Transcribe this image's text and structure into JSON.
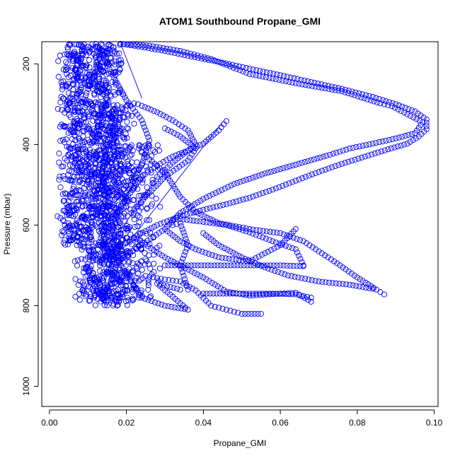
{
  "chart_data": {
    "type": "scatter",
    "title": "ATOM1 Southbound Propane_GMI",
    "xlabel": "Propane_GMI",
    "ylabel": "Pressure (mbar)",
    "xlim": [
      -0.002,
      0.101
    ],
    "ylim": [
      1050,
      145
    ],
    "y_axis_inverted": true,
    "x_ticks": [
      "0.00",
      "0.02",
      "0.04",
      "0.06",
      "0.08",
      "0.10"
    ],
    "y_ticks": [
      "200",
      "400",
      "600",
      "800",
      "1000"
    ],
    "x_tick_values": [
      0.0,
      0.02,
      0.04,
      0.06,
      0.08,
      0.1
    ],
    "y_tick_values": [
      200,
      400,
      600,
      800,
      1000
    ],
    "grid": false,
    "marker": "open-circle",
    "color": "#0000ff",
    "series": [
      {
        "values": [
          {
            "x": 0.0185,
            "y": 150
          },
          {
            "x": 0.024,
            "y": 158
          },
          {
            "x": 0.03,
            "y": 168
          },
          {
            "x": 0.036,
            "y": 180
          },
          {
            "x": 0.044,
            "y": 195
          },
          {
            "x": 0.052,
            "y": 212
          },
          {
            "x": 0.06,
            "y": 228
          },
          {
            "x": 0.068,
            "y": 245
          },
          {
            "x": 0.076,
            "y": 262
          },
          {
            "x": 0.084,
            "y": 282
          },
          {
            "x": 0.09,
            "y": 300
          },
          {
            "x": 0.095,
            "y": 318
          },
          {
            "x": 0.098,
            "y": 338
          },
          {
            "x": 0.098,
            "y": 362
          },
          {
            "x": 0.096,
            "y": 380
          },
          {
            "x": 0.093,
            "y": 398
          },
          {
            "x": 0.088,
            "y": 412
          },
          {
            "x": 0.082,
            "y": 430
          },
          {
            "x": 0.076,
            "y": 448
          },
          {
            "x": 0.07,
            "y": 468
          },
          {
            "x": 0.064,
            "y": 490
          },
          {
            "x": 0.058,
            "y": 512
          },
          {
            "x": 0.052,
            "y": 532
          },
          {
            "x": 0.046,
            "y": 548
          },
          {
            "x": 0.04,
            "y": 562
          },
          {
            "x": 0.034,
            "y": 578
          },
          {
            "x": 0.028,
            "y": 600
          },
          {
            "x": 0.022,
            "y": 630
          },
          {
            "x": 0.017,
            "y": 665
          }
        ]
      },
      {
        "values": [
          {
            "x": 0.0185,
            "y": 150
          },
          {
            "x": 0.026,
            "y": 155
          },
          {
            "x": 0.034,
            "y": 168
          },
          {
            "x": 0.042,
            "y": 188
          },
          {
            "x": 0.052,
            "y": 225
          },
          {
            "x": 0.064,
            "y": 248
          },
          {
            "x": 0.076,
            "y": 268
          },
          {
            "x": 0.086,
            "y": 298
          },
          {
            "x": 0.089,
            "y": 305
          },
          {
            "x": 0.097,
            "y": 345
          },
          {
            "x": 0.095,
            "y": 372
          },
          {
            "x": 0.09,
            "y": 385
          },
          {
            "x": 0.084,
            "y": 398
          },
          {
            "x": 0.078,
            "y": 410
          },
          {
            "x": 0.072,
            "y": 428
          },
          {
            "x": 0.064,
            "y": 450
          },
          {
            "x": 0.056,
            "y": 472
          },
          {
            "x": 0.048,
            "y": 498
          },
          {
            "x": 0.04,
            "y": 535
          },
          {
            "x": 0.034,
            "y": 570
          },
          {
            "x": 0.03,
            "y": 610
          },
          {
            "x": 0.024,
            "y": 648
          },
          {
            "x": 0.018,
            "y": 690
          }
        ]
      },
      {
        "values": [
          {
            "x": 0.046,
            "y": 342
          },
          {
            "x": 0.044,
            "y": 365
          },
          {
            "x": 0.04,
            "y": 398
          },
          {
            "x": 0.036,
            "y": 415
          },
          {
            "x": 0.032,
            "y": 430
          },
          {
            "x": 0.028,
            "y": 452
          },
          {
            "x": 0.024,
            "y": 480
          },
          {
            "x": 0.021,
            "y": 520
          },
          {
            "x": 0.018,
            "y": 560
          },
          {
            "x": 0.016,
            "y": 600
          },
          {
            "x": 0.014,
            "y": 650
          }
        ]
      },
      {
        "values": [
          {
            "x": 0.024,
            "y": 420
          },
          {
            "x": 0.03,
            "y": 470
          },
          {
            "x": 0.034,
            "y": 530
          },
          {
            "x": 0.038,
            "y": 568
          },
          {
            "x": 0.044,
            "y": 595
          },
          {
            "x": 0.052,
            "y": 610
          },
          {
            "x": 0.06,
            "y": 620
          },
          {
            "x": 0.066,
            "y": 640
          },
          {
            "x": 0.07,
            "y": 665
          },
          {
            "x": 0.074,
            "y": 690
          },
          {
            "x": 0.08,
            "y": 730
          },
          {
            "x": 0.085,
            "y": 760
          },
          {
            "x": 0.087,
            "y": 772
          }
        ]
      },
      {
        "values": [
          {
            "x": 0.022,
            "y": 630
          },
          {
            "x": 0.03,
            "y": 680
          },
          {
            "x": 0.04,
            "y": 730
          },
          {
            "x": 0.046,
            "y": 765
          },
          {
            "x": 0.052,
            "y": 775
          },
          {
            "x": 0.06,
            "y": 770
          },
          {
            "x": 0.064,
            "y": 768
          },
          {
            "x": 0.068,
            "y": 790
          }
        ]
      },
      {
        "values": [
          {
            "x": 0.03,
            "y": 700
          },
          {
            "x": 0.036,
            "y": 700
          },
          {
            "x": 0.042,
            "y": 700
          },
          {
            "x": 0.048,
            "y": 700
          },
          {
            "x": 0.054,
            "y": 700
          },
          {
            "x": 0.06,
            "y": 700
          },
          {
            "x": 0.066,
            "y": 702
          }
        ]
      },
      {
        "values": [
          {
            "x": 0.04,
            "y": 770
          },
          {
            "x": 0.046,
            "y": 770
          },
          {
            "x": 0.052,
            "y": 770
          },
          {
            "x": 0.058,
            "y": 770
          },
          {
            "x": 0.064,
            "y": 772
          },
          {
            "x": 0.068,
            "y": 780
          }
        ]
      },
      {
        "values": [
          {
            "x": 0.026,
            "y": 728
          },
          {
            "x": 0.03,
            "y": 735
          },
          {
            "x": 0.034,
            "y": 740
          },
          {
            "x": 0.038,
            "y": 762
          },
          {
            "x": 0.042,
            "y": 800
          },
          {
            "x": 0.046,
            "y": 810
          },
          {
            "x": 0.05,
            "y": 820
          },
          {
            "x": 0.055,
            "y": 820
          }
        ]
      },
      {
        "values": [
          {
            "x": 0.016,
            "y": 660
          },
          {
            "x": 0.02,
            "y": 720
          },
          {
            "x": 0.024,
            "y": 780
          },
          {
            "x": 0.03,
            "y": 800
          },
          {
            "x": 0.036,
            "y": 810
          },
          {
            "x": 0.028,
            "y": 745
          },
          {
            "x": 0.034,
            "y": 760
          }
        ]
      },
      {
        "values": [
          {
            "x": 0.04,
            "y": 620
          },
          {
            "x": 0.044,
            "y": 650
          },
          {
            "x": 0.05,
            "y": 680
          },
          {
            "x": 0.056,
            "y": 705
          },
          {
            "x": 0.062,
            "y": 725
          },
          {
            "x": 0.07,
            "y": 740
          },
          {
            "x": 0.078,
            "y": 748
          },
          {
            "x": 0.084,
            "y": 758
          }
        ]
      },
      {
        "values": [
          {
            "x": 0.034,
            "y": 585
          },
          {
            "x": 0.04,
            "y": 592
          },
          {
            "x": 0.046,
            "y": 600
          },
          {
            "x": 0.052,
            "y": 618
          },
          {
            "x": 0.058,
            "y": 640
          },
          {
            "x": 0.064,
            "y": 660
          },
          {
            "x": 0.066,
            "y": 700
          }
        ]
      },
      {
        "values": [
          {
            "x": 0.03,
            "y": 610
          },
          {
            "x": 0.034,
            "y": 640
          },
          {
            "x": 0.038,
            "y": 660
          },
          {
            "x": 0.044,
            "y": 680
          },
          {
            "x": 0.052,
            "y": 690
          },
          {
            "x": 0.06,
            "y": 650
          },
          {
            "x": 0.064,
            "y": 610
          }
        ]
      },
      {
        "values": [
          {
            "x": 0.032,
            "y": 588
          },
          {
            "x": 0.032,
            "y": 600
          },
          {
            "x": 0.034,
            "y": 595
          },
          {
            "x": 0.036,
            "y": 650
          },
          {
            "x": 0.034,
            "y": 700
          },
          {
            "x": 0.036,
            "y": 760
          }
        ]
      },
      {
        "values": [
          {
            "x": 0.022,
            "y": 298
          },
          {
            "x": 0.023,
            "y": 300
          },
          {
            "x": 0.024,
            "y": 304
          },
          {
            "x": 0.028,
            "y": 320
          },
          {
            "x": 0.032,
            "y": 340
          },
          {
            "x": 0.036,
            "y": 365
          },
          {
            "x": 0.038,
            "y": 400
          },
          {
            "x": 0.032,
            "y": 445
          },
          {
            "x": 0.028,
            "y": 480
          }
        ]
      },
      {
        "values": [
          {
            "x": 0.012,
            "y": 150
          },
          {
            "x": 0.016,
            "y": 220
          },
          {
            "x": 0.02,
            "y": 290
          },
          {
            "x": 0.024,
            "y": 340
          },
          {
            "x": 0.026,
            "y": 390
          },
          {
            "x": 0.024,
            "y": 450
          },
          {
            "x": 0.02,
            "y": 520
          }
        ]
      },
      {
        "values": [
          {
            "x": 0.03,
            "y": 360
          },
          {
            "x": 0.034,
            "y": 380
          },
          {
            "x": 0.038,
            "y": 410
          },
          {
            "x": 0.036,
            "y": 440
          },
          {
            "x": 0.03,
            "y": 480
          },
          {
            "x": 0.026,
            "y": 520
          },
          {
            "x": 0.022,
            "y": 560
          }
        ]
      }
    ],
    "dense_core": [
      {
        "x_center": 0.013,
        "x_spread": 0.007,
        "y_min": 150,
        "y_max": 790,
        "count": 900
      },
      {
        "x_center": 0.0065,
        "x_spread": 0.005,
        "y_min": 150,
        "y_max": 650,
        "count": 400
      },
      {
        "x_center": 0.017,
        "x_spread": 0.006,
        "y_min": 300,
        "y_max": 800,
        "count": 400
      },
      {
        "x_center": 0.023,
        "x_spread": 0.007,
        "y_min": 400,
        "y_max": 790,
        "count": 200
      }
    ],
    "lines": [
      {
        "values": [
          {
            "x": 0.0185,
            "y": 150
          },
          {
            "x": 0.024,
            "y": 285
          }
        ]
      },
      {
        "values": [
          {
            "x": 0.045,
            "y": 345
          },
          {
            "x": 0.02,
            "y": 650
          }
        ]
      },
      {
        "values": [
          {
            "x": 0.028,
            "y": 480
          },
          {
            "x": 0.018,
            "y": 620
          }
        ]
      }
    ]
  }
}
